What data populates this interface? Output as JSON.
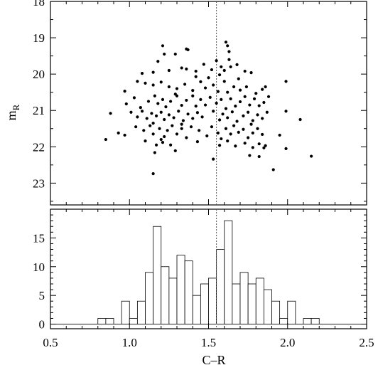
{
  "chart_data": [
    {
      "type": "scatter",
      "xlim": [
        0.5,
        2.5
      ],
      "ylim": [
        18,
        23.6
      ],
      "yinverted": true,
      "ylabel_main": "m",
      "ylabel_sub": "R",
      "yticks": [
        18,
        19,
        20,
        21,
        22,
        23
      ],
      "marker_line_x": 1.55,
      "points": [
        [
          1.21,
          19.22
        ],
        [
          1.22,
          19.45
        ],
        [
          1.29,
          19.45
        ],
        [
          1.36,
          19.31
        ],
        [
          1.37,
          19.33
        ],
        [
          1.61,
          19.12
        ],
        [
          1.62,
          19.22
        ],
        [
          1.63,
          19.38
        ],
        [
          1.63,
          19.6
        ],
        [
          1.18,
          19.65
        ],
        [
          1.15,
          19.95
        ],
        [
          1.25,
          19.9
        ],
        [
          1.33,
          19.83
        ],
        [
          1.36,
          19.86
        ],
        [
          1.42,
          19.92
        ],
        [
          1.47,
          19.73
        ],
        [
          1.52,
          19.88
        ],
        [
          1.55,
          19.63
        ],
        [
          1.58,
          19.8
        ],
        [
          1.6,
          19.9
        ],
        [
          1.64,
          19.8
        ],
        [
          1.68,
          19.74
        ],
        [
          1.73,
          19.92
        ],
        [
          1.77,
          19.96
        ],
        [
          1.08,
          19.98
        ],
        [
          1.99,
          20.2
        ],
        [
          0.97,
          20.47
        ],
        [
          1.05,
          20.2
        ],
        [
          1.1,
          20.25
        ],
        [
          1.15,
          20.3
        ],
        [
          1.2,
          20.22
        ],
        [
          1.25,
          20.35
        ],
        [
          1.3,
          20.4
        ],
        [
          1.35,
          20.28
        ],
        [
          1.4,
          20.45
        ],
        [
          1.45,
          20.21
        ],
        [
          1.48,
          20.38
        ],
        [
          1.5,
          20.1
        ],
        [
          1.53,
          20.3
        ],
        [
          1.56,
          20.48
        ],
        [
          1.6,
          20.2
        ],
        [
          1.62,
          20.5
        ],
        [
          1.66,
          20.35
        ],
        [
          1.7,
          20.44
        ],
        [
          1.74,
          20.35
        ],
        [
          1.8,
          20.53
        ],
        [
          1.84,
          20.42
        ],
        [
          1.86,
          20.35
        ],
        [
          1.69,
          20.13
        ],
        [
          1.57,
          20.02
        ],
        [
          1.42,
          20.07
        ],
        [
          0.98,
          20.82
        ],
        [
          1.03,
          20.65
        ],
        [
          1.07,
          20.92
        ],
        [
          1.12,
          20.75
        ],
        [
          1.16,
          20.6
        ],
        [
          1.18,
          20.81
        ],
        [
          1.21,
          20.7
        ],
        [
          1.23,
          20.9
        ],
        [
          1.26,
          20.75
        ],
        [
          1.3,
          20.6
        ],
        [
          1.33,
          20.86
        ],
        [
          1.36,
          20.72
        ],
        [
          1.4,
          20.6
        ],
        [
          1.42,
          20.88
        ],
        [
          1.45,
          20.7
        ],
        [
          1.48,
          20.85
        ],
        [
          1.51,
          20.64
        ],
        [
          1.55,
          20.8
        ],
        [
          1.58,
          20.7
        ],
        [
          1.61,
          20.95
        ],
        [
          1.64,
          20.68
        ],
        [
          1.67,
          20.88
        ],
        [
          1.7,
          20.76
        ],
        [
          1.73,
          20.62
        ],
        [
          1.76,
          20.85
        ],
        [
          1.79,
          20.68
        ],
        [
          1.82,
          20.87
        ],
        [
          1.85,
          20.78
        ],
        [
          1.88,
          20.62
        ],
        [
          1.29,
          20.55
        ],
        [
          0.88,
          21.08
        ],
        [
          1.01,
          21.05
        ],
        [
          1.05,
          21.18
        ],
        [
          1.08,
          21.02
        ],
        [
          1.11,
          21.22
        ],
        [
          1.14,
          21.08
        ],
        [
          1.17,
          21.15
        ],
        [
          1.2,
          21.05
        ],
        [
          1.22,
          21.25
        ],
        [
          1.25,
          21.12
        ],
        [
          1.28,
          21.2
        ],
        [
          1.31,
          21.02
        ],
        [
          1.34,
          21.28
        ],
        [
          1.37,
          21.1
        ],
        [
          1.4,
          21.22
        ],
        [
          1.43,
          21.06
        ],
        [
          1.46,
          21.18
        ],
        [
          1.53,
          21.02
        ],
        [
          1.57,
          21.26
        ],
        [
          1.59,
          21.1
        ],
        [
          1.62,
          21.2
        ],
        [
          1.65,
          21.04
        ],
        [
          1.68,
          21.3
        ],
        [
          1.72,
          21.15
        ],
        [
          1.75,
          21.05
        ],
        [
          1.78,
          21.28
        ],
        [
          1.81,
          21.12
        ],
        [
          1.84,
          21.22
        ],
        [
          1.87,
          21.05
        ],
        [
          1.99,
          21.02
        ],
        [
          2.08,
          21.25
        ],
        [
          1.15,
          21.35
        ],
        [
          1.33,
          21.38
        ],
        [
          1.77,
          21.38
        ],
        [
          0.93,
          21.62
        ],
        [
          0.97,
          21.68
        ],
        [
          1.04,
          21.45
        ],
        [
          1.09,
          21.55
        ],
        [
          1.13,
          21.42
        ],
        [
          1.15,
          21.65
        ],
        [
          1.19,
          21.5
        ],
        [
          1.22,
          21.72
        ],
        [
          1.24,
          21.55
        ],
        [
          1.27,
          21.42
        ],
        [
          1.3,
          21.65
        ],
        [
          1.33,
          21.5
        ],
        [
          1.36,
          21.75
        ],
        [
          1.39,
          21.45
        ],
        [
          1.44,
          21.55
        ],
        [
          1.49,
          21.7
        ],
        [
          1.52,
          21.45
        ],
        [
          1.56,
          21.62
        ],
        [
          1.58,
          21.78
        ],
        [
          1.61,
          21.5
        ],
        [
          1.64,
          21.65
        ],
        [
          1.66,
          21.42
        ],
        [
          1.69,
          21.6
        ],
        [
          1.72,
          21.52
        ],
        [
          1.75,
          21.75
        ],
        [
          1.78,
          21.62
        ],
        [
          1.81,
          21.5
        ],
        [
          1.84,
          21.66
        ],
        [
          1.95,
          21.68
        ],
        [
          1.2,
          21.8
        ],
        [
          0.85,
          21.8
        ],
        [
          1.1,
          21.84
        ],
        [
          1.17,
          21.95
        ],
        [
          1.21,
          21.88
        ],
        [
          1.26,
          21.95
        ],
        [
          1.43,
          21.86
        ],
        [
          1.57,
          21.96
        ],
        [
          1.62,
          21.84
        ],
        [
          1.67,
          21.98
        ],
        [
          1.73,
          21.9
        ],
        [
          1.78,
          22.02
        ],
        [
          1.82,
          21.92
        ],
        [
          1.86,
          21.97
        ],
        [
          1.99,
          22.05
        ],
        [
          1.85,
          22.03
        ],
        [
          1.16,
          22.16
        ],
        [
          1.29,
          22.11
        ],
        [
          1.53,
          22.34
        ],
        [
          1.76,
          22.24
        ],
        [
          1.82,
          22.27
        ],
        [
          1.91,
          22.63
        ],
        [
          2.15,
          22.26
        ],
        [
          1.15,
          22.74
        ]
      ]
    },
    {
      "type": "bar",
      "xlim": [
        0.5,
        2.5
      ],
      "ylim": [
        -0.8,
        20
      ],
      "bin_width": 0.05,
      "xticks": [
        0.5,
        1.0,
        1.5,
        2.0,
        2.5
      ],
      "xtick_labels": [
        "0.5",
        "1.0",
        "1.5",
        "2.0",
        "2.5"
      ],
      "yticks": [
        0,
        5,
        10,
        15
      ],
      "xlabel": "C–R",
      "marker_line_x": 1.55,
      "bins": [
        [
          0.8,
          1
        ],
        [
          0.85,
          1
        ],
        [
          0.95,
          4
        ],
        [
          1.0,
          1
        ],
        [
          1.05,
          4
        ],
        [
          1.1,
          9
        ],
        [
          1.15,
          17
        ],
        [
          1.2,
          10
        ],
        [
          1.25,
          8
        ],
        [
          1.3,
          12
        ],
        [
          1.35,
          11
        ],
        [
          1.4,
          5
        ],
        [
          1.45,
          7
        ],
        [
          1.5,
          8
        ],
        [
          1.55,
          13
        ],
        [
          1.6,
          18
        ],
        [
          1.65,
          7
        ],
        [
          1.7,
          9
        ],
        [
          1.75,
          7
        ],
        [
          1.8,
          8
        ],
        [
          1.85,
          6
        ],
        [
          1.9,
          4
        ],
        [
          1.95,
          1
        ],
        [
          2.0,
          4
        ],
        [
          2.05,
          0
        ],
        [
          2.1,
          1
        ],
        [
          2.15,
          1
        ]
      ]
    }
  ]
}
